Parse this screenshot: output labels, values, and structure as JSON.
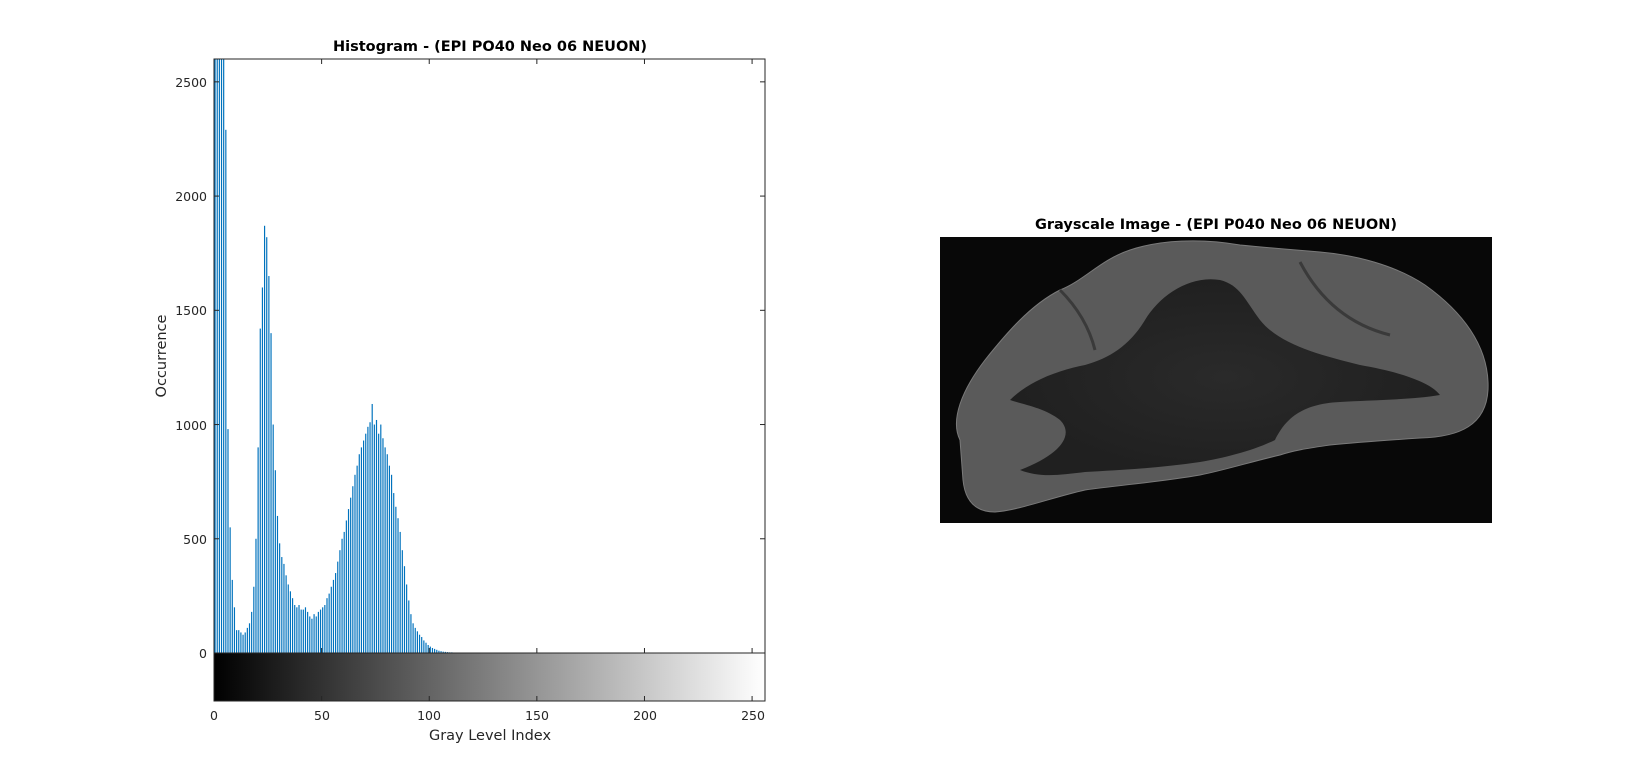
{
  "chart_data": [
    {
      "type": "bar",
      "title": "Histogram - (EPI PO40 Neo 06 NEUON)",
      "xlabel": "Gray Level Index",
      "ylabel": "Occurrence",
      "xlim": [
        0,
        256
      ],
      "ylim": [
        0,
        2600
      ],
      "xticks": [
        "0",
        "50",
        "100",
        "150",
        "200",
        "250"
      ],
      "yticks": [
        "0",
        "500",
        "1000",
        "1500",
        "2000",
        "2500"
      ],
      "colorbar": "grayscale 0-255",
      "bar_color": "#0072BD",
      "x": [
        0,
        1,
        2,
        3,
        4,
        5,
        6,
        7,
        8,
        9,
        10,
        11,
        12,
        13,
        14,
        15,
        16,
        17,
        18,
        19,
        20,
        21,
        22,
        23,
        24,
        25,
        26,
        27,
        28,
        29,
        30,
        31,
        32,
        33,
        34,
        35,
        36,
        37,
        38,
        39,
        40,
        41,
        42,
        43,
        44,
        45,
        46,
        47,
        48,
        49,
        50,
        51,
        52,
        53,
        54,
        55,
        56,
        57,
        58,
        59,
        60,
        61,
        62,
        63,
        64,
        65,
        66,
        67,
        68,
        69,
        70,
        71,
        72,
        73,
        74,
        75,
        76,
        77,
        78,
        79,
        80,
        81,
        82,
        83,
        84,
        85,
        86,
        87,
        88,
        89,
        90,
        91,
        92,
        93,
        94,
        95,
        96,
        97,
        98,
        99,
        100,
        101,
        102,
        103,
        104,
        105,
        106,
        107,
        108,
        109,
        110,
        111,
        112,
        113,
        114,
        115,
        116,
        117,
        118,
        119,
        120
      ],
      "values": [
        2600,
        2600,
        2600,
        2600,
        2600,
        2290,
        980,
        550,
        320,
        200,
        100,
        100,
        90,
        80,
        90,
        110,
        130,
        180,
        290,
        500,
        900,
        1420,
        1600,
        1870,
        1820,
        1650,
        1400,
        1000,
        800,
        600,
        480,
        420,
        390,
        340,
        300,
        270,
        240,
        210,
        200,
        210,
        190,
        190,
        200,
        180,
        160,
        150,
        170,
        160,
        180,
        190,
        200,
        210,
        240,
        260,
        290,
        320,
        350,
        400,
        450,
        500,
        530,
        580,
        630,
        680,
        730,
        780,
        820,
        870,
        900,
        930,
        960,
        990,
        1010,
        1090,
        1000,
        1020,
        960,
        1000,
        940,
        900,
        870,
        820,
        780,
        700,
        640,
        590,
        530,
        450,
        380,
        300,
        230,
        170,
        130,
        110,
        95,
        80,
        70,
        55,
        45,
        35,
        28,
        22,
        18,
        14,
        10,
        8,
        6,
        5,
        4,
        3,
        3,
        2,
        2,
        1,
        1,
        1,
        1,
        1,
        1,
        1,
        1
      ]
    },
    {
      "type": "image",
      "title": "Grayscale Image - (EPI P040 Neo 06 NEUON)"
    }
  ]
}
